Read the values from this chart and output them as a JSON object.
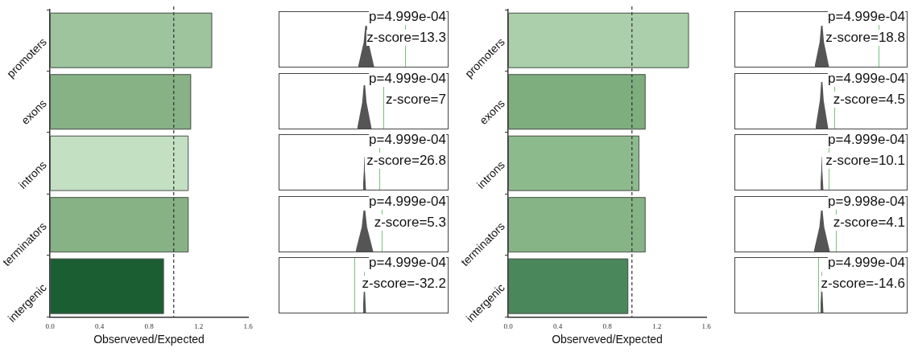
{
  "chart_data": [
    {
      "type": "bar",
      "orientation": "horizontal",
      "categories": [
        "promoters",
        "exons",
        "introns",
        "terminators",
        "intergenic"
      ],
      "values": [
        1.31,
        1.14,
        1.12,
        1.12,
        0.92
      ],
      "colors": [
        "#9dc49d",
        "#86b286",
        "#c3e0c3",
        "#86b286",
        "#1a5e32"
      ],
      "xlim": [
        0,
        1.6
      ],
      "xticks": [
        {
          "value": 0,
          "label": "0.0"
        },
        0.4,
        0.8,
        1.2,
        1.6
      ],
      "xlabel": "Observeved/Expected",
      "ref_lines": [
        {
          "axis": "x",
          "value": 1,
          "line_style": "dashed",
          "color": "#333333"
        }
      ]
    },
    {
      "type": "other",
      "annotations": [
        "p=4.999e-04",
        "z-score=13.3"
      ]
    },
    {
      "type": "other",
      "annotations": [
        "p=4.999e-04",
        "z-score=7"
      ]
    },
    {
      "type": "other",
      "annotations": [
        "p=4.999e-04",
        "z-score=26.8"
      ]
    },
    {
      "type": "other",
      "annotations": [
        "p=4.999e-04",
        "z-score=5.3"
      ]
    },
    {
      "type": "other",
      "annotations": [
        "p=4.999e-04",
        "z-score=-32.2"
      ]
    },
    {
      "type": "bar",
      "orientation": "horizontal",
      "categories": [
        "promoters",
        "exons",
        "introns",
        "terminators",
        "intergenic"
      ],
      "values": [
        1.46,
        1.11,
        1.06,
        1.11,
        0.97
      ],
      "colors": [
        "#aacfaa",
        "#7eae7e",
        "#8dba8d",
        "#86b486",
        "#4a875a"
      ],
      "xlim": [
        0,
        1.6
      ],
      "xticks": [
        {
          "value": 0,
          "label": "0.0"
        },
        0.4,
        0.8,
        1.2,
        1.6
      ],
      "xlabel": "Observeved/Expected",
      "ref_lines": [
        {
          "axis": "x",
          "value": 1,
          "line_style": "dashed",
          "color": "#333333"
        }
      ]
    },
    {
      "type": "other",
      "annotations": [
        "p=4.999e-04",
        "z-score=18.8"
      ]
    },
    {
      "type": "other",
      "annotations": [
        "p=4.999e-04",
        "z-score=4.5"
      ]
    },
    {
      "type": "other",
      "annotations": [
        "p=4.999e-04",
        "z-score=10.1"
      ]
    },
    {
      "type": "other",
      "annotations": [
        "p=9.998e-04",
        "z-score=4.1"
      ]
    },
    {
      "type": "other",
      "annotations": [
        "p=4.999e-04",
        "z-score=-14.6"
      ]
    }
  ]
}
